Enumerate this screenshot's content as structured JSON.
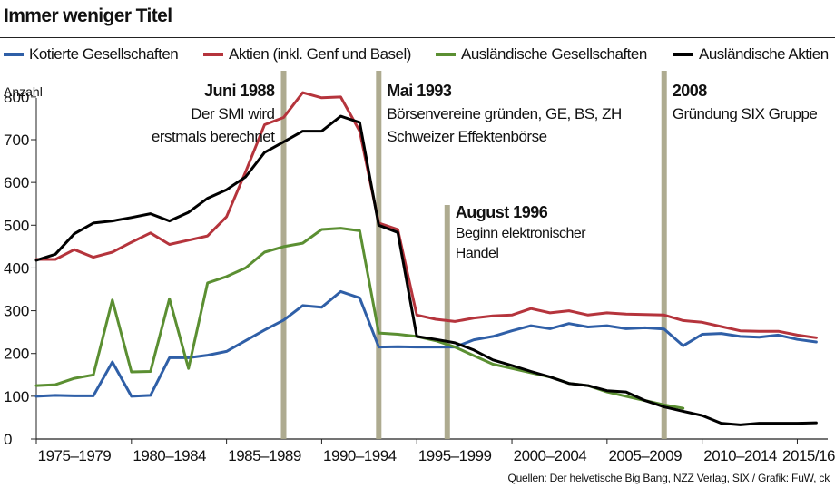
{
  "title": "Immer weniger Titel",
  "source": "Quellen: Der helvetische Big Bang, NZZ Verlag, SIX / Grafik: FuW, ck",
  "colors": {
    "blue": "#2f5fa7",
    "red": "#b5343c",
    "green": "#5b8f32",
    "black": "#000000",
    "marker": "#aaa68a"
  },
  "chart_data": {
    "type": "line",
    "ylabel": "Anzahl",
    "ylim": [
      0,
      840
    ],
    "yticks": [
      0,
      100,
      200,
      300,
      400,
      500,
      600,
      700,
      800
    ],
    "xlim": [
      1975,
      2016.6
    ],
    "category_labels": [
      {
        "label": "1975–1979",
        "center": 1977
      },
      {
        "label": "1980–1984",
        "center": 1982
      },
      {
        "label": "1985–1989",
        "center": 1987
      },
      {
        "label": "1990–1994",
        "center": 1992
      },
      {
        "label": "1995–1999",
        "center": 1997
      },
      {
        "label": "2000–2004",
        "center": 2002
      },
      {
        "label": "2005–2009",
        "center": 2007
      },
      {
        "label": "2010–2014",
        "center": 2012
      },
      {
        "label": "2015/16",
        "center": 2015.6
      }
    ],
    "series": [
      {
        "name": "Kotierte Gesellschaften",
        "color": "#2f5fa7",
        "x": [
          1975,
          1976,
          1977,
          1978,
          1979,
          1980,
          1981,
          1982,
          1983,
          1984,
          1985,
          1986,
          1987,
          1988,
          1989,
          1990,
          1991,
          1992,
          1993,
          1994,
          1995,
          1996,
          1997,
          1998,
          1999,
          2000,
          2001,
          2002,
          2003,
          2004,
          2005,
          2006,
          2007,
          2008,
          2009,
          2010,
          2011,
          2012,
          2013,
          2014,
          2015,
          2016
        ],
        "y": [
          100,
          102,
          101,
          101,
          180,
          100,
          102,
          190,
          190,
          196,
          205,
          230,
          255,
          278,
          312,
          308,
          345,
          330,
          215,
          216,
          215,
          215,
          215,
          232,
          240,
          253,
          265,
          258,
          270,
          262,
          265,
          258,
          260,
          257,
          218,
          245,
          247,
          240,
          238,
          243,
          233,
          227
        ]
      },
      {
        "name": "Aktien (inkl. Genf und Basel)",
        "color": "#b5343c",
        "x": [
          1975,
          1976,
          1977,
          1978,
          1979,
          1980,
          1981,
          1982,
          1983,
          1984,
          1985,
          1986,
          1987,
          1988,
          1989,
          1990,
          1991,
          1992,
          1993,
          1994,
          1995,
          1996,
          1997,
          1998,
          1999,
          2000,
          2001,
          2002,
          2003,
          2004,
          2005,
          2006,
          2007,
          2008,
          2009,
          2010,
          2011,
          2012,
          2013,
          2014,
          2015,
          2016
        ],
        "y": [
          420,
          420,
          443,
          425,
          437,
          460,
          482,
          455,
          465,
          475,
          520,
          625,
          735,
          752,
          810,
          798,
          800,
          720,
          505,
          490,
          290,
          280,
          275,
          283,
          288,
          290,
          305,
          295,
          300,
          290,
          295,
          292,
          291,
          290,
          277,
          273,
          263,
          253,
          252,
          252,
          243,
          237
        ]
      },
      {
        "name": "Ausländische Gesellschaften",
        "color": "#5b8f32",
        "x": [
          1975,
          1976,
          1977,
          1978,
          1979,
          1980,
          1981,
          1982,
          1983,
          1984,
          1985,
          1986,
          1987,
          1988,
          1989,
          1990,
          1991,
          1992,
          1993,
          1994,
          1995,
          1996,
          1997,
          1998,
          1999,
          2000,
          2001,
          2002,
          2003,
          2004,
          2005,
          2006,
          2007,
          2008,
          2009
        ],
        "y": [
          125,
          127,
          142,
          150,
          325,
          157,
          158,
          328,
          165,
          365,
          380,
          400,
          437,
          450,
          458,
          490,
          493,
          487,
          248,
          245,
          240,
          230,
          215,
          195,
          175,
          165,
          155,
          145,
          130,
          125,
          110,
          100,
          90,
          80,
          72
        ]
      },
      {
        "name": "Ausländische Aktien",
        "color": "#000000",
        "x": [
          1975,
          1976,
          1977,
          1978,
          1979,
          1980,
          1981,
          1982,
          1983,
          1984,
          1985,
          1986,
          1987,
          1988,
          1989,
          1990,
          1991,
          1992,
          1993,
          1994,
          1995,
          1996,
          1997,
          1998,
          1999,
          2000,
          2001,
          2002,
          2003,
          2004,
          2005,
          2006,
          2007,
          2008,
          2009,
          2010,
          2011,
          2012,
          2013,
          2014,
          2015,
          2016
        ],
        "y": [
          418,
          432,
          480,
          505,
          510,
          518,
          527,
          510,
          530,
          563,
          583,
          613,
          670,
          695,
          720,
          720,
          755,
          740,
          500,
          483,
          240,
          233,
          225,
          208,
          185,
          172,
          158,
          145,
          130,
          125,
          113,
          110,
          90,
          75,
          65,
          55,
          37,
          33,
          37,
          37,
          37,
          38
        ]
      }
    ],
    "annotations": [
      {
        "x": 1988,
        "label_side": "left",
        "title": "Juni 1988",
        "lines": [
          "Der SMI wird",
          "erstmals berechnet"
        ]
      },
      {
        "x": 1993,
        "label_side": "right",
        "title": "Mai 1993",
        "lines": [
          "Börsenvereine gründen, GE, BS, ZH",
          "Schweizer Effektenbörse"
        ]
      },
      {
        "x": 1996.6,
        "label_side": "right",
        "title": "August 1996",
        "lines": [
          "Beginn elektronischer",
          "Handel"
        ]
      },
      {
        "x": 2008,
        "label_side": "right",
        "title": "2008",
        "lines": [
          "Gründung SIX Gruppe"
        ]
      }
    ]
  }
}
